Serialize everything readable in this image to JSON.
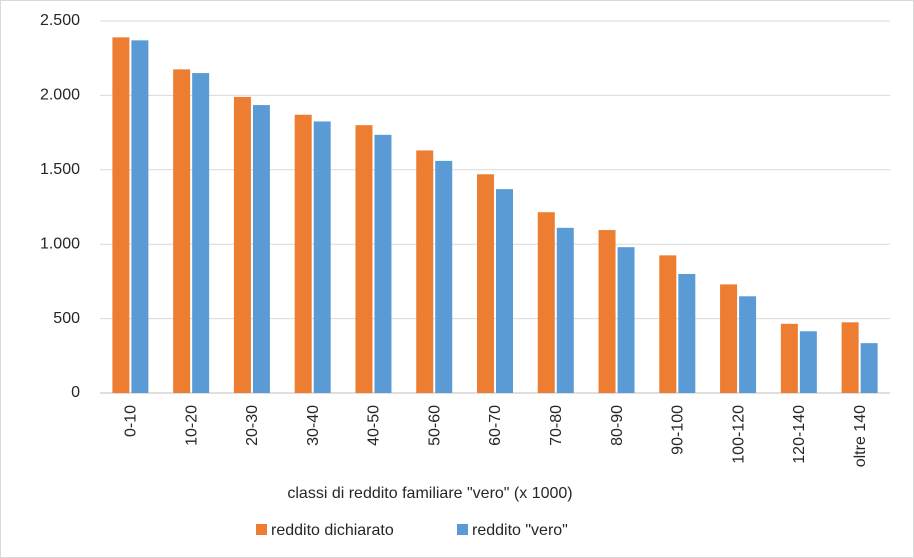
{
  "chart_data": {
    "type": "bar",
    "x_label": "classi di reddito familiare \"vero\" (x 1000)",
    "categories": [
      "0-10",
      "10-20",
      "20-30",
      "30-40",
      "40-50",
      "50-60",
      "60-70",
      "70-80",
      "80-90",
      "90-100",
      "100-120",
      "120-140",
      "oltre 140"
    ],
    "series": [
      {
        "name": "reddito dichiarato",
        "color": "#ed7d31",
        "values": [
          2390,
          2175,
          1990,
          1870,
          1800,
          1630,
          1470,
          1215,
          1095,
          925,
          730,
          465,
          475
        ]
      },
      {
        "name": "reddito \"vero\"",
        "color": "#5b9bd5",
        "values": [
          2370,
          2150,
          1935,
          1825,
          1735,
          1560,
          1370,
          1110,
          980,
          800,
          650,
          415,
          335
        ]
      }
    ],
    "ylim": [
      0,
      2500
    ],
    "yticks": [
      0,
      500,
      {
        "value": 1000,
        "label": "1.000"
      },
      {
        "value": 1500,
        "label": "1.500"
      },
      {
        "value": 2000,
        "label": "2.000"
      },
      {
        "value": 2500,
        "label": "2.500"
      }
    ],
    "grid": true,
    "legend": "bottom"
  }
}
